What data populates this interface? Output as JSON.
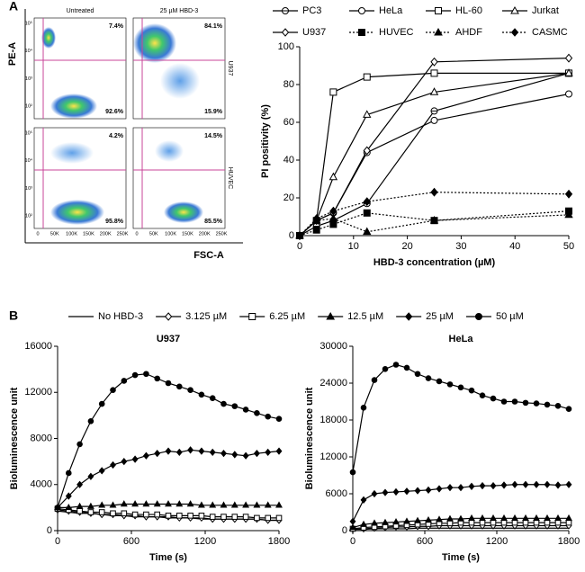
{
  "panel_labels": [
    "A",
    "B"
  ],
  "flow": {
    "y_label": "PE-A",
    "x_label": "FSC-A",
    "columns": [
      "Untreated",
      "25 µM HBD-3"
    ],
    "rows": [
      "U937",
      "HUVEC"
    ],
    "quadrants": [
      [
        [
          "7.4%",
          "92.6%"
        ],
        [
          "84.1%",
          "15.9%"
        ]
      ],
      [
        [
          "4.2%",
          "95.8%"
        ],
        [
          "14.5%",
          "85.5%"
        ]
      ]
    ],
    "yticks": [
      "10²",
      "10³",
      "10⁴",
      "10⁵"
    ],
    "xticks": [
      "0",
      "50K",
      "100K",
      "150K",
      "200K",
      "250K"
    ]
  },
  "chart_data": [
    {
      "type": "line",
      "x_label": "HBD-3 concentration (µM)",
      "y_label": "PI positivity (%)",
      "x": [
        0,
        3.125,
        6.25,
        12.5,
        25,
        50
      ],
      "xlim": [
        0,
        50
      ],
      "xticks": [
        0,
        10,
        20,
        30,
        40,
        50
      ],
      "ylim": [
        0,
        100
      ],
      "yticks": [
        0,
        20,
        40,
        60,
        80,
        100
      ],
      "series": [
        {
          "name": "PC3",
          "color": "#000000",
          "marker": "circle-crossed",
          "line_style": "solid",
          "values": [
            0,
            5,
            8,
            17,
            66,
            86
          ]
        },
        {
          "name": "HeLa",
          "color": "#000000",
          "marker": "circle-open",
          "line_style": "solid",
          "values": [
            0,
            8,
            12,
            44,
            61,
            75
          ]
        },
        {
          "name": "HL-60",
          "color": "#000000",
          "marker": "square-open",
          "line_style": "solid",
          "values": [
            0,
            8,
            76,
            84,
            86,
            86
          ]
        },
        {
          "name": "Jurkat",
          "color": "#000000",
          "marker": "triangle-open",
          "line_style": "solid",
          "values": [
            0,
            8,
            31,
            64,
            76,
            86
          ]
        },
        {
          "name": "U937",
          "color": "#000000",
          "marker": "diamond-open",
          "line_style": "solid",
          "values": [
            0,
            8,
            12,
            45,
            92,
            94
          ]
        },
        {
          "name": "HUVEC",
          "color": "#000000",
          "marker": "square",
          "line_style": "dotted",
          "values": [
            0,
            3,
            6,
            12,
            8,
            13
          ]
        },
        {
          "name": "AHDF",
          "color": "#000000",
          "marker": "triangle",
          "line_style": "dotted",
          "values": [
            0,
            8,
            9,
            2,
            8,
            11
          ]
        },
        {
          "name": "CASMC",
          "color": "#000000",
          "marker": "diamond",
          "line_style": "dotted",
          "values": [
            0,
            9,
            13,
            18,
            23,
            22
          ]
        }
      ]
    },
    {
      "type": "line",
      "title": "U937",
      "x_label": "Time (s)",
      "y_label": "Bioluminescence unit",
      "x": [
        0,
        90,
        180,
        270,
        360,
        450,
        540,
        630,
        720,
        810,
        900,
        990,
        1080,
        1170,
        1260,
        1350,
        1440,
        1530,
        1620,
        1710,
        1800
      ],
      "xlim": [
        0,
        1800
      ],
      "xticks": [
        0,
        600,
        1200,
        1800
      ],
      "ylim": [
        0,
        16000
      ],
      "yticks": [
        0,
        4000,
        8000,
        12000,
        16000
      ],
      "series": [
        {
          "name": "No HBD-3",
          "color": "#000000",
          "marker": "none",
          "values": [
            1700,
            1600,
            1500,
            1500,
            1400,
            1300,
            1300,
            1200,
            1200,
            1200,
            1100,
            1100,
            1100,
            1000,
            1000,
            1000,
            1000,
            1000,
            1000,
            900,
            900
          ]
        },
        {
          "name": "3.125 µM",
          "color": "#000000",
          "marker": "diamond-open",
          "values": [
            1800,
            1700,
            1600,
            1500,
            1400,
            1400,
            1300,
            1300,
            1200,
            1200,
            1200,
            1100,
            1100,
            1100,
            1000,
            1000,
            1000,
            1000,
            1000,
            900,
            900
          ]
        },
        {
          "name": "6.25 µM",
          "color": "#000000",
          "marker": "square-open",
          "values": [
            1900,
            1800,
            1700,
            1600,
            1600,
            1500,
            1500,
            1400,
            1400,
            1400,
            1300,
            1300,
            1300,
            1300,
            1200,
            1200,
            1200,
            1200,
            1100,
            1100,
            1100
          ]
        },
        {
          "name": "12.5 µM",
          "color": "#000000",
          "marker": "triangle",
          "values": [
            2000,
            2000,
            2100,
            2100,
            2200,
            2200,
            2300,
            2300,
            2300,
            2300,
            2300,
            2300,
            2300,
            2200,
            2200,
            2200,
            2200,
            2200,
            2200,
            2200,
            2200
          ]
        },
        {
          "name": "25 µM",
          "color": "#000000",
          "marker": "diamond",
          "values": [
            2000,
            3000,
            4000,
            4700,
            5200,
            5700,
            6000,
            6200,
            6500,
            6700,
            6900,
            6800,
            7000,
            6900,
            6800,
            6700,
            6600,
            6500,
            6700,
            6800,
            6900
          ]
        },
        {
          "name": "50 µM",
          "color": "#000000",
          "marker": "circle",
          "values": [
            2000,
            5000,
            7500,
            9500,
            11000,
            12200,
            13000,
            13500,
            13600,
            13200,
            12800,
            12500,
            12200,
            11800,
            11500,
            11000,
            10800,
            10500,
            10200,
            9900,
            9700
          ]
        }
      ]
    },
    {
      "type": "line",
      "title": "HeLa",
      "x_label": "Time (s)",
      "y_label": "Bioluminescence unit",
      "x": [
        0,
        90,
        180,
        270,
        360,
        450,
        540,
        630,
        720,
        810,
        900,
        990,
        1080,
        1170,
        1260,
        1350,
        1440,
        1530,
        1620,
        1710,
        1800
      ],
      "xlim": [
        0,
        1800
      ],
      "xticks": [
        0,
        600,
        1200,
        1800
      ],
      "ylim": [
        0,
        30000
      ],
      "yticks": [
        0,
        6000,
        12000,
        18000,
        24000,
        30000
      ],
      "series": [
        {
          "color": "#000000",
          "marker": "none",
          "values": [
            200,
            200,
            300,
            300,
            300,
            300,
            400,
            400,
            400,
            400,
            400,
            400,
            400,
            400,
            400,
            400,
            400,
            400,
            400,
            400,
            400
          ]
        },
        {
          "color": "#000000",
          "marker": "diamond-open",
          "values": [
            200,
            300,
            400,
            500,
            600,
            600,
            700,
            700,
            800,
            800,
            800,
            800,
            800,
            800,
            800,
            800,
            800,
            800,
            800,
            800,
            800
          ]
        },
        {
          "color": "#000000",
          "marker": "square-open",
          "values": [
            300,
            500,
            600,
            700,
            800,
            900,
            1000,
            1100,
            1200,
            1200,
            1300,
            1300,
            1300,
            1300,
            1300,
            1300,
            1300,
            1300,
            1300,
            1300,
            1300
          ]
        },
        {
          "color": "#000000",
          "marker": "triangle",
          "values": [
            500,
            1000,
            1200,
            1300,
            1400,
            1500,
            1600,
            1700,
            1800,
            1900,
            1900,
            2000,
            2000,
            2000,
            2000,
            2000,
            2000,
            2000,
            2000,
            2000,
            2000
          ]
        },
        {
          "color": "#000000",
          "marker": "diamond",
          "values": [
            1500,
            5000,
            6000,
            6200,
            6300,
            6400,
            6500,
            6600,
            6800,
            7000,
            7000,
            7200,
            7300,
            7300,
            7400,
            7500,
            7500,
            7500,
            7500,
            7400,
            7500
          ]
        },
        {
          "color": "#000000",
          "marker": "circle",
          "values": [
            9500,
            20000,
            24500,
            26300,
            27000,
            26500,
            25500,
            24800,
            24300,
            23800,
            23300,
            22800,
            22000,
            21500,
            21000,
            21000,
            20800,
            20700,
            20500,
            20300,
            19800
          ]
        }
      ]
    }
  ]
}
